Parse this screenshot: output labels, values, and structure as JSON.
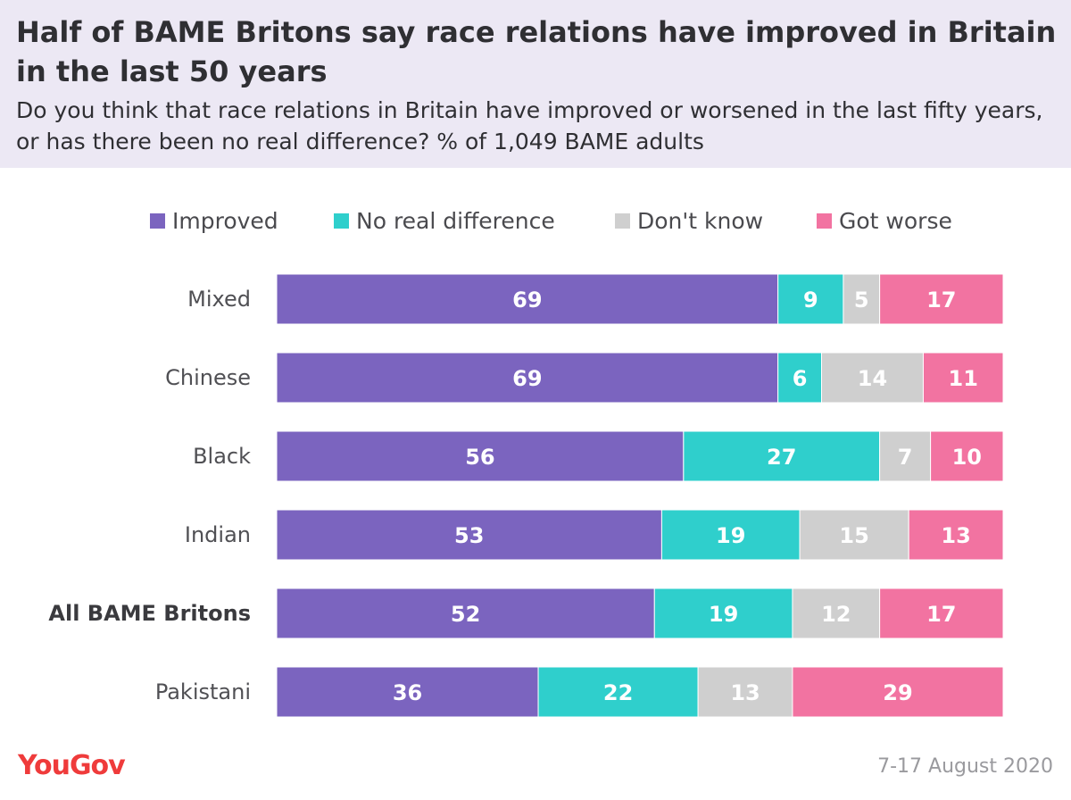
{
  "header": {
    "title": "Half of BAME Britons say race relations have improved in Britain in the last 50 years",
    "subtitle": "Do you think that race relations in Britain have improved or worsened in the last fifty years, or has there been no real difference? % of 1,049 BAME adults"
  },
  "footer": {
    "logo": "YouGov",
    "date": "7-17 August 2020"
  },
  "chart_data": {
    "type": "bar",
    "orientation": "horizontal",
    "stacked": true,
    "xlim": [
      0,
      100
    ],
    "grid": false,
    "legend_position": "top",
    "categories": [
      "Mixed",
      "Chinese",
      "Black",
      "Indian",
      "All BAME Britons",
      "Pakistani"
    ],
    "highlighted_category": "All BAME Britons",
    "series": [
      {
        "name": "Improved",
        "color": "#7b64bf",
        "values": [
          69,
          69,
          56,
          53,
          52,
          36
        ]
      },
      {
        "name": "No real difference",
        "color": "#2fcfcc",
        "values": [
          9,
          6,
          27,
          19,
          19,
          22
        ]
      },
      {
        "name": "Don't know",
        "color": "#cfcfcf",
        "values": [
          5,
          14,
          7,
          15,
          12,
          13
        ]
      },
      {
        "name": "Got worse",
        "color": "#f273a1",
        "values": [
          17,
          11,
          10,
          13,
          17,
          29
        ]
      }
    ]
  }
}
